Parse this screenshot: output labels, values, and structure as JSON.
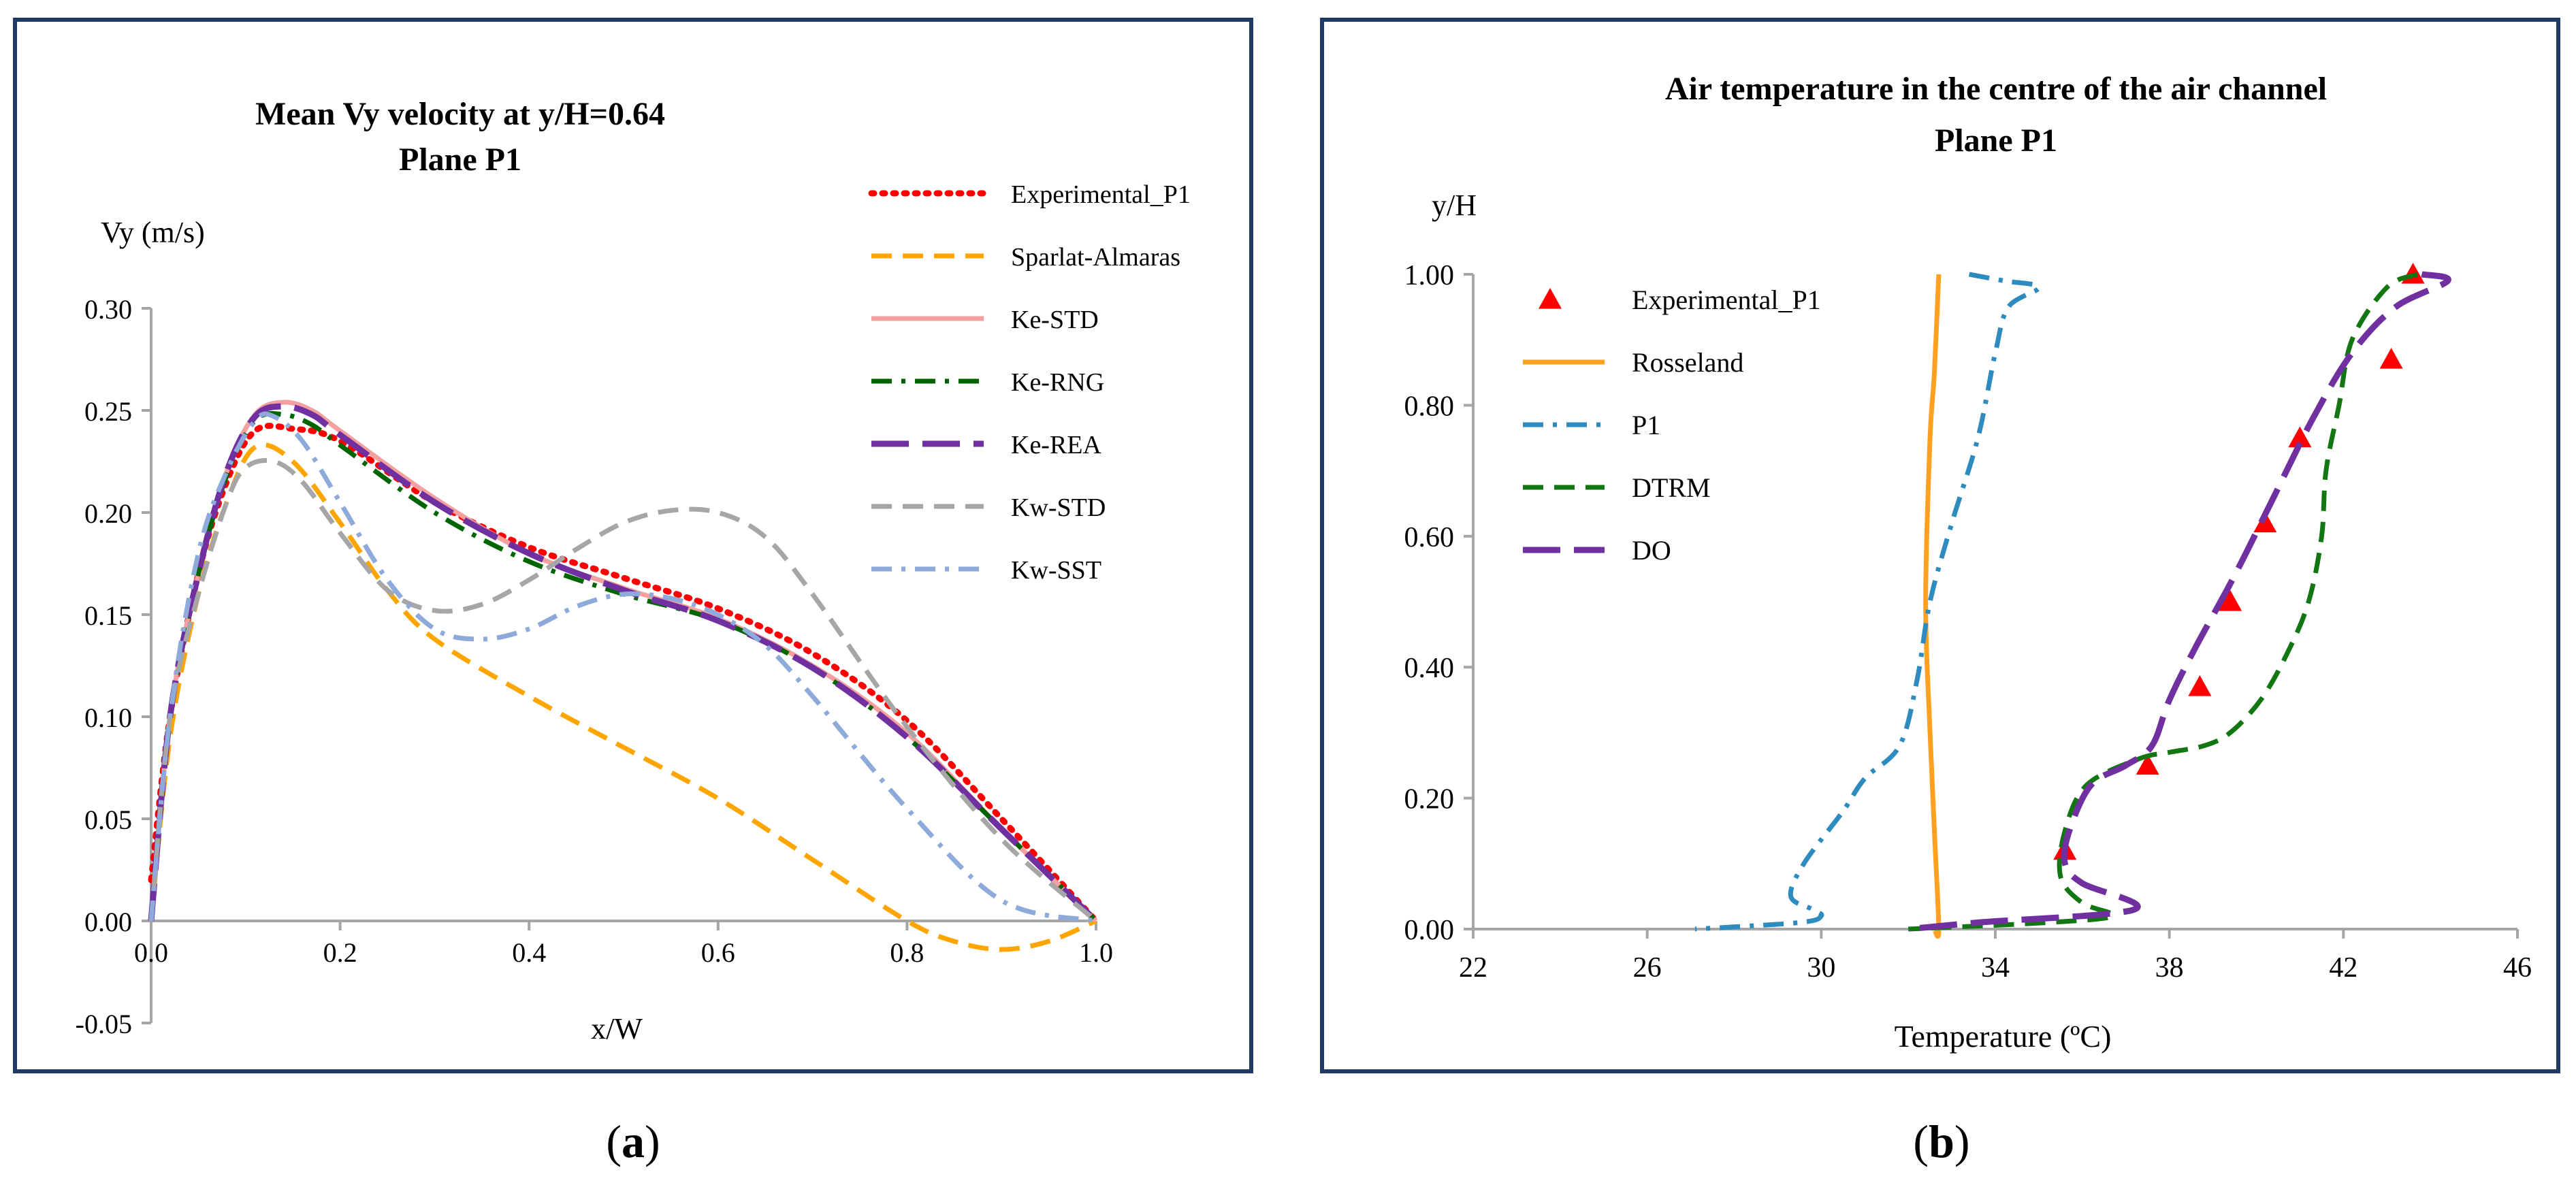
{
  "chart_data": [
    {
      "panel_label": "(a)",
      "caption": {
        "open": "(",
        "letter": "a",
        "close": ")"
      },
      "type": "line",
      "title": "Mean Vy velocity at y/H=0.64",
      "subtitle": "Plane P1",
      "xlabel": "x/W",
      "ylabel": "Vy (m/s)",
      "xlim": [
        0,
        1
      ],
      "ylim": [
        -0.05,
        0.3
      ],
      "xticks": [
        0,
        0.2,
        0.4,
        0.6,
        0.8,
        1.0
      ],
      "xtick_labels": [
        "0.0",
        "0.2",
        "0.4",
        "0.6",
        "0.8",
        "1.0"
      ],
      "yticks": [
        -0.05,
        0,
        0.05,
        0.1,
        0.15,
        0.2,
        0.25,
        0.3
      ],
      "ytick_labels": [
        "-0.05",
        "0.00",
        "0.05",
        "0.10",
        "0.15",
        "0.20",
        "0.25",
        "0.30"
      ],
      "grid": false,
      "legend_position": "top-right",
      "series": [
        {
          "name": "Experimental_P1",
          "color": "#ff0000",
          "dash": "dot",
          "x": [
            0,
            0.02,
            0.05,
            0.08,
            0.11,
            0.15,
            0.2,
            0.3,
            0.4,
            0.5,
            0.6,
            0.7,
            0.8,
            0.9,
            1.0
          ],
          "y": [
            0.02,
            0.1,
            0.17,
            0.215,
            0.24,
            0.241,
            0.235,
            0.205,
            0.183,
            0.168,
            0.153,
            0.131,
            0.098,
            0.05,
            0
          ]
        },
        {
          "name": "Sparlat-Almaras",
          "color": "#ffa500",
          "dash": "dash",
          "x": [
            0,
            0.02,
            0.05,
            0.08,
            0.11,
            0.15,
            0.2,
            0.25,
            0.3,
            0.4,
            0.5,
            0.6,
            0.7,
            0.8,
            0.85,
            0.9,
            0.95,
            1.0
          ],
          "y": [
            0,
            0.09,
            0.16,
            0.205,
            0.232,
            0.225,
            0.195,
            0.162,
            0.138,
            0.11,
            0.085,
            0.06,
            0.03,
            0,
            -0.01,
            -0.014,
            -0.01,
            0
          ]
        },
        {
          "name": "Ke-STD",
          "color": "#f4a0a0",
          "dash": "solid",
          "x": [
            0,
            0.02,
            0.05,
            0.08,
            0.11,
            0.14,
            0.17,
            0.2,
            0.3,
            0.4,
            0.5,
            0.6,
            0.7,
            0.8,
            0.9,
            1.0
          ],
          "y": [
            0,
            0.1,
            0.17,
            0.22,
            0.248,
            0.254,
            0.25,
            0.24,
            0.207,
            0.18,
            0.163,
            0.148,
            0.125,
            0.092,
            0.045,
            0
          ]
        },
        {
          "name": "Ke-RNG",
          "color": "#006400",
          "dash": "dashdot",
          "x": [
            0,
            0.02,
            0.05,
            0.08,
            0.11,
            0.14,
            0.17,
            0.2,
            0.3,
            0.4,
            0.5,
            0.6,
            0.7,
            0.8,
            0.9,
            1.0
          ],
          "y": [
            0,
            0.1,
            0.17,
            0.218,
            0.245,
            0.248,
            0.243,
            0.233,
            0.2,
            0.176,
            0.16,
            0.147,
            0.124,
            0.09,
            0.045,
            0
          ]
        },
        {
          "name": "Ke-REA",
          "color": "#7030a0",
          "dash": "longdash",
          "x": [
            0,
            0.02,
            0.05,
            0.08,
            0.11,
            0.14,
            0.17,
            0.2,
            0.3,
            0.4,
            0.5,
            0.6,
            0.7,
            0.8,
            0.9,
            1.0
          ],
          "y": [
            0,
            0.1,
            0.17,
            0.22,
            0.247,
            0.252,
            0.248,
            0.238,
            0.205,
            0.18,
            0.162,
            0.147,
            0.124,
            0.09,
            0.045,
            0
          ]
        },
        {
          "name": "Kw-STD",
          "color": "#a6a6a6",
          "dash": "dash",
          "x": [
            0,
            0.02,
            0.05,
            0.08,
            0.1,
            0.13,
            0.16,
            0.2,
            0.25,
            0.3,
            0.35,
            0.4,
            0.45,
            0.5,
            0.55,
            0.6,
            0.65,
            0.7,
            0.8,
            0.9,
            1.0
          ],
          "y": [
            0,
            0.1,
            0.16,
            0.205,
            0.222,
            0.225,
            0.215,
            0.19,
            0.162,
            0.152,
            0.155,
            0.167,
            0.182,
            0.195,
            0.201,
            0.2,
            0.188,
            0.16,
            0.095,
            0.04,
            0
          ]
        },
        {
          "name": "Kw-SST",
          "color": "#8eaadb",
          "dash": "dashdot",
          "x": [
            0,
            0.02,
            0.05,
            0.08,
            0.11,
            0.13,
            0.16,
            0.2,
            0.25,
            0.3,
            0.35,
            0.4,
            0.45,
            0.5,
            0.55,
            0.6,
            0.65,
            0.7,
            0.8,
            0.9,
            1.0
          ],
          "y": [
            0,
            0.1,
            0.18,
            0.22,
            0.245,
            0.247,
            0.235,
            0.205,
            0.167,
            0.143,
            0.138,
            0.143,
            0.154,
            0.16,
            0.158,
            0.15,
            0.135,
            0.11,
            0.055,
            0.01,
            0
          ]
        }
      ]
    },
    {
      "panel_label": "(b)",
      "caption": {
        "open": "(",
        "letter": "b",
        "close": ")"
      },
      "type": "line",
      "title": "Air temperature in the centre of the air channel",
      "subtitle": "Plane P1",
      "xlabel": "Temperature (ºC)",
      "ylabel": "y/H",
      "xlim": [
        22,
        46
      ],
      "ylim": [
        0,
        1
      ],
      "xticks": [
        22,
        26,
        30,
        34,
        38,
        42,
        46
      ],
      "xtick_labels": [
        "22",
        "26",
        "30",
        "34",
        "38",
        "42",
        "46"
      ],
      "yticks": [
        0,
        0.2,
        0.4,
        0.6,
        0.8,
        1.0
      ],
      "ytick_labels": [
        "0.00",
        "0.20",
        "0.40",
        "0.60",
        "0.80",
        "1.00"
      ],
      "grid": false,
      "legend_position": "top-left",
      "series": [
        {
          "name": "Experimental_P1",
          "color": "#ff0000",
          "marker": "triangle",
          "dash": "none",
          "x": [
            43.6,
            43.1,
            41.0,
            40.2,
            39.4,
            38.7,
            37.5,
            35.6
          ],
          "y": [
            1.0,
            0.87,
            0.75,
            0.62,
            0.5,
            0.37,
            0.25,
            0.12
          ]
        },
        {
          "name": "Rosseland",
          "color": "#ffa020",
          "dash": "solid",
          "x": [
            32.7,
            32.6,
            32.5,
            32.4,
            32.5,
            32.6,
            32.7,
            32.6
          ],
          "y": [
            1.0,
            0.85,
            0.75,
            0.5,
            0.3,
            0.15,
            0.0,
            0.0
          ]
        },
        {
          "name": "P1",
          "color": "#2e8bc0",
          "dash": "dashdot",
          "x": [
            33.4,
            34.2,
            35.0,
            34.3,
            34.0,
            33.6,
            33.0,
            32.5,
            32.2,
            31.8,
            31.0,
            30.5,
            29.6,
            29.3,
            29.8,
            30.0,
            29.5,
            27.1
          ],
          "y": [
            1.0,
            0.99,
            0.98,
            0.95,
            0.88,
            0.75,
            0.62,
            0.5,
            0.38,
            0.28,
            0.23,
            0.18,
            0.1,
            0.05,
            0.03,
            0.02,
            0.01,
            0.0
          ]
        },
        {
          "name": "DTRM",
          "color": "#127612",
          "dash": "dash",
          "x": [
            43.7,
            43.0,
            42.2,
            41.9,
            41.6,
            41.5,
            41.2,
            40.7,
            40.1,
            39.4,
            38.8,
            38.0,
            37.3,
            36.1,
            35.6,
            35.5,
            36.0,
            36.7,
            35.2,
            32.0
          ],
          "y": [
            1.0,
            0.98,
            0.9,
            0.8,
            0.7,
            0.6,
            0.5,
            0.42,
            0.35,
            0.3,
            0.28,
            0.27,
            0.26,
            0.22,
            0.15,
            0.08,
            0.04,
            0.02,
            0.01,
            0.0
          ]
        },
        {
          "name": "DO",
          "color": "#7030a0",
          "dash": "longdash",
          "x": [
            43.8,
            44.4,
            43.2,
            42.2,
            41.3,
            40.4,
            39.5,
            38.6,
            38.0,
            37.6,
            37.0,
            36.2,
            35.7,
            35.6,
            36.0,
            37.2,
            33.6,
            32.0
          ],
          "y": [
            1.0,
            0.99,
            0.95,
            0.88,
            0.78,
            0.66,
            0.54,
            0.43,
            0.35,
            0.28,
            0.25,
            0.22,
            0.15,
            0.1,
            0.07,
            0.03,
            0.01,
            0.0
          ]
        }
      ]
    }
  ]
}
